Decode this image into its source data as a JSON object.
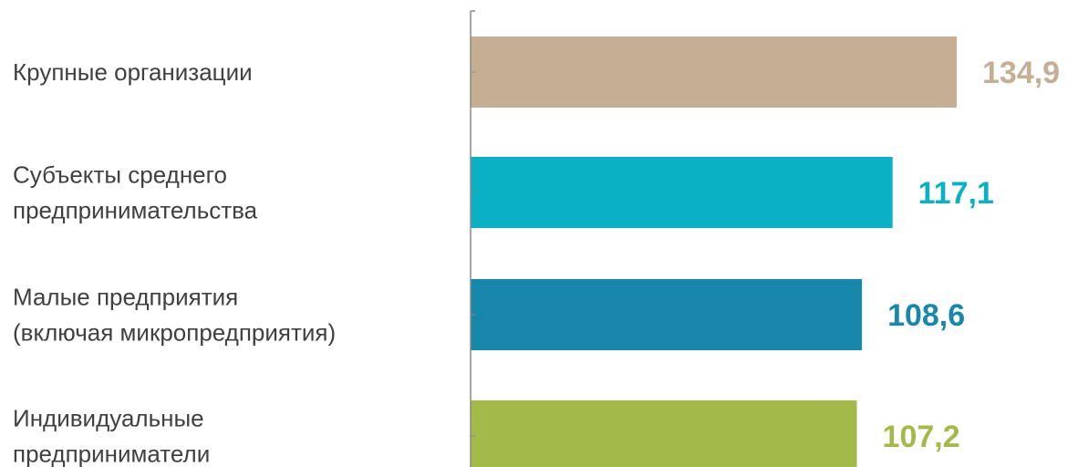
{
  "chart_data": {
    "type": "bar",
    "orientation": "horizontal",
    "categories": [
      [
        "Крупные организации"
      ],
      [
        "Субъекты среднего",
        "предпринимательства"
      ],
      [
        "Малые предприятия",
        "(включая микропредприятия)"
      ],
      [
        "Индивидуальные",
        "предприниматели"
      ]
    ],
    "values": [
      134.9,
      117.1,
      108.6,
      107.2
    ],
    "value_labels": [
      "134,9",
      "117,1",
      "108,6",
      "107,2"
    ],
    "colors": [
      "#c6ae94",
      "#0ab1c4",
      "#1787ab",
      "#a3b94a"
    ],
    "label_colors": [
      "#c6ae94",
      "#0ab1c4",
      "#1787ab",
      "#a3b94a"
    ],
    "axis_color": "#8a8a8a",
    "title": "",
    "xlabel": "",
    "ylabel": "",
    "xlim": [
      0,
      134.9
    ],
    "grid": false,
    "legend": "none"
  }
}
